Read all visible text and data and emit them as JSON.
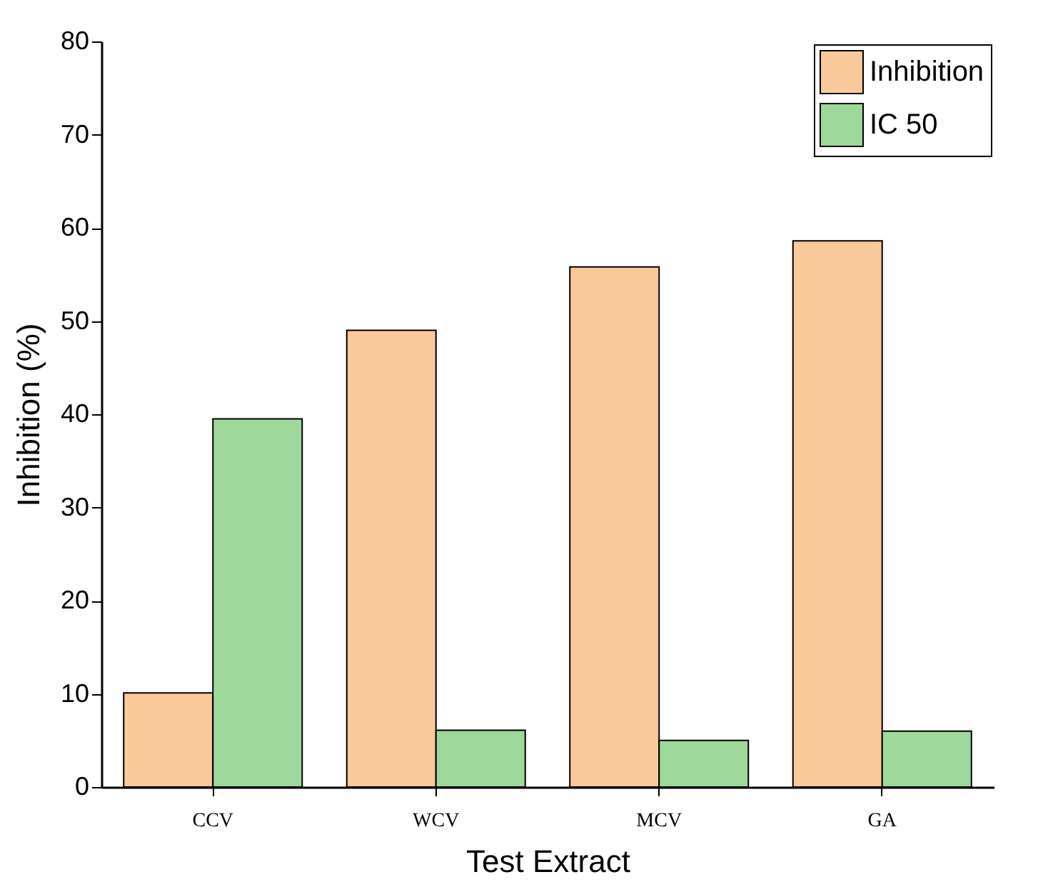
{
  "chart_data": {
    "type": "bar",
    "xlabel": "Test Extract",
    "ylabel": "Inhibition (%)",
    "categories": [
      "CCV",
      "WCV",
      "MCV",
      "GA"
    ],
    "series": [
      {
        "name": "Inhibition",
        "color": "#f9c89b",
        "values": [
          10.1,
          49.0,
          55.8,
          58.6
        ]
      },
      {
        "name": "IC 50",
        "color": "#9ed89b",
        "values": [
          39.5,
          6.1,
          5.0,
          6.0
        ]
      }
    ],
    "ylim": [
      0,
      80
    ],
    "yticks": [
      0,
      10,
      20,
      30,
      40,
      50,
      60,
      70,
      80
    ],
    "grid": false,
    "legend": "top right"
  }
}
